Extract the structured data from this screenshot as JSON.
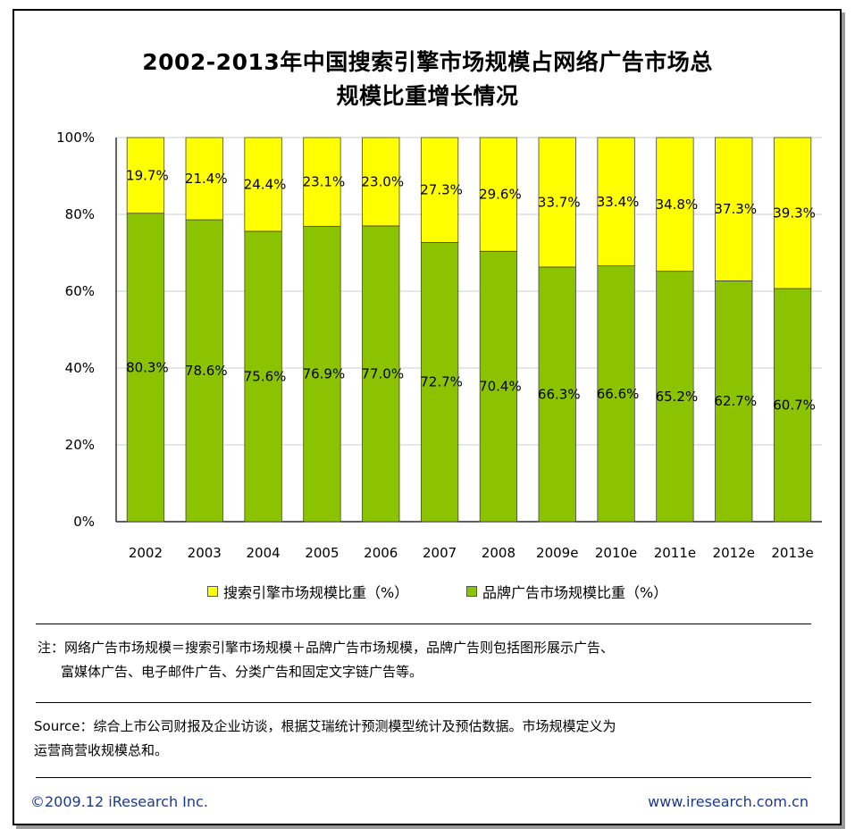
{
  "title_line1": "2002-2013年中国搜索引擎市场规模占网络广告市场总",
  "title_line2": "规模比重增长情况",
  "colors": {
    "search": "#ffff00",
    "brand": "#8cc300",
    "gridline": "#cccccc"
  },
  "chart_data": {
    "type": "bar",
    "stacked": true,
    "categories": [
      "2002",
      "2003",
      "2004",
      "2005",
      "2006",
      "2007",
      "2008",
      "2009e",
      "2010e",
      "2011e",
      "2012e",
      "2013e"
    ],
    "series": [
      {
        "name": "品牌广告市场规模比重（%）",
        "color": "#8cc300",
        "values": [
          80.3,
          78.6,
          75.6,
          76.9,
          77.0,
          72.7,
          70.4,
          66.3,
          66.6,
          65.2,
          62.7,
          60.7
        ],
        "labels": [
          "80.3%",
          "78.6%",
          "75.6%",
          "76.9%",
          "77.0%",
          "72.7%",
          "70.4%",
          "66.3%",
          "66.6%",
          "65.2%",
          "62.7%",
          "60.7%"
        ]
      },
      {
        "name": "搜索引擎市场规模比重（%）",
        "color": "#ffff00",
        "values": [
          19.7,
          21.4,
          24.4,
          23.1,
          23.0,
          27.3,
          29.6,
          33.7,
          33.4,
          34.8,
          37.3,
          39.3
        ],
        "labels": [
          "19.7%",
          "21.4%",
          "24.4%",
          "23.1%",
          "23.0%",
          "27.3%",
          "29.6%",
          "33.7%",
          "33.4%",
          "34.8%",
          "37.3%",
          "39.3%"
        ]
      }
    ],
    "ylim": [
      0,
      100
    ],
    "yticks": [
      0,
      20,
      40,
      60,
      80,
      100
    ],
    "ytick_labels": [
      "0%",
      "20%",
      "40%",
      "60%",
      "80%",
      "100%"
    ],
    "grid": true,
    "legend_position": "bottom"
  },
  "legend": {
    "search_label": "搜索引擎市场规模比重（%）",
    "brand_label": "品牌广告市场规模比重（%）"
  },
  "note": {
    "line1": "注：网络广告市场规模＝搜索引擎市场规模＋品牌广告市场规模，品牌广告则包括图形展示广告、",
    "line2": "富媒体广告、电子邮件广告、分类广告和固定文字链广告等。"
  },
  "source": {
    "line1": "Source：综合上市公司财报及企业访谈，根据艾瑞统计预测模型统计及预估数据。市场规模定义为",
    "line2": "运营商营收规模总和。"
  },
  "footer": {
    "copyright": "©2009.12 iResearch Inc.",
    "website": "www.iresearch.com.cn"
  }
}
